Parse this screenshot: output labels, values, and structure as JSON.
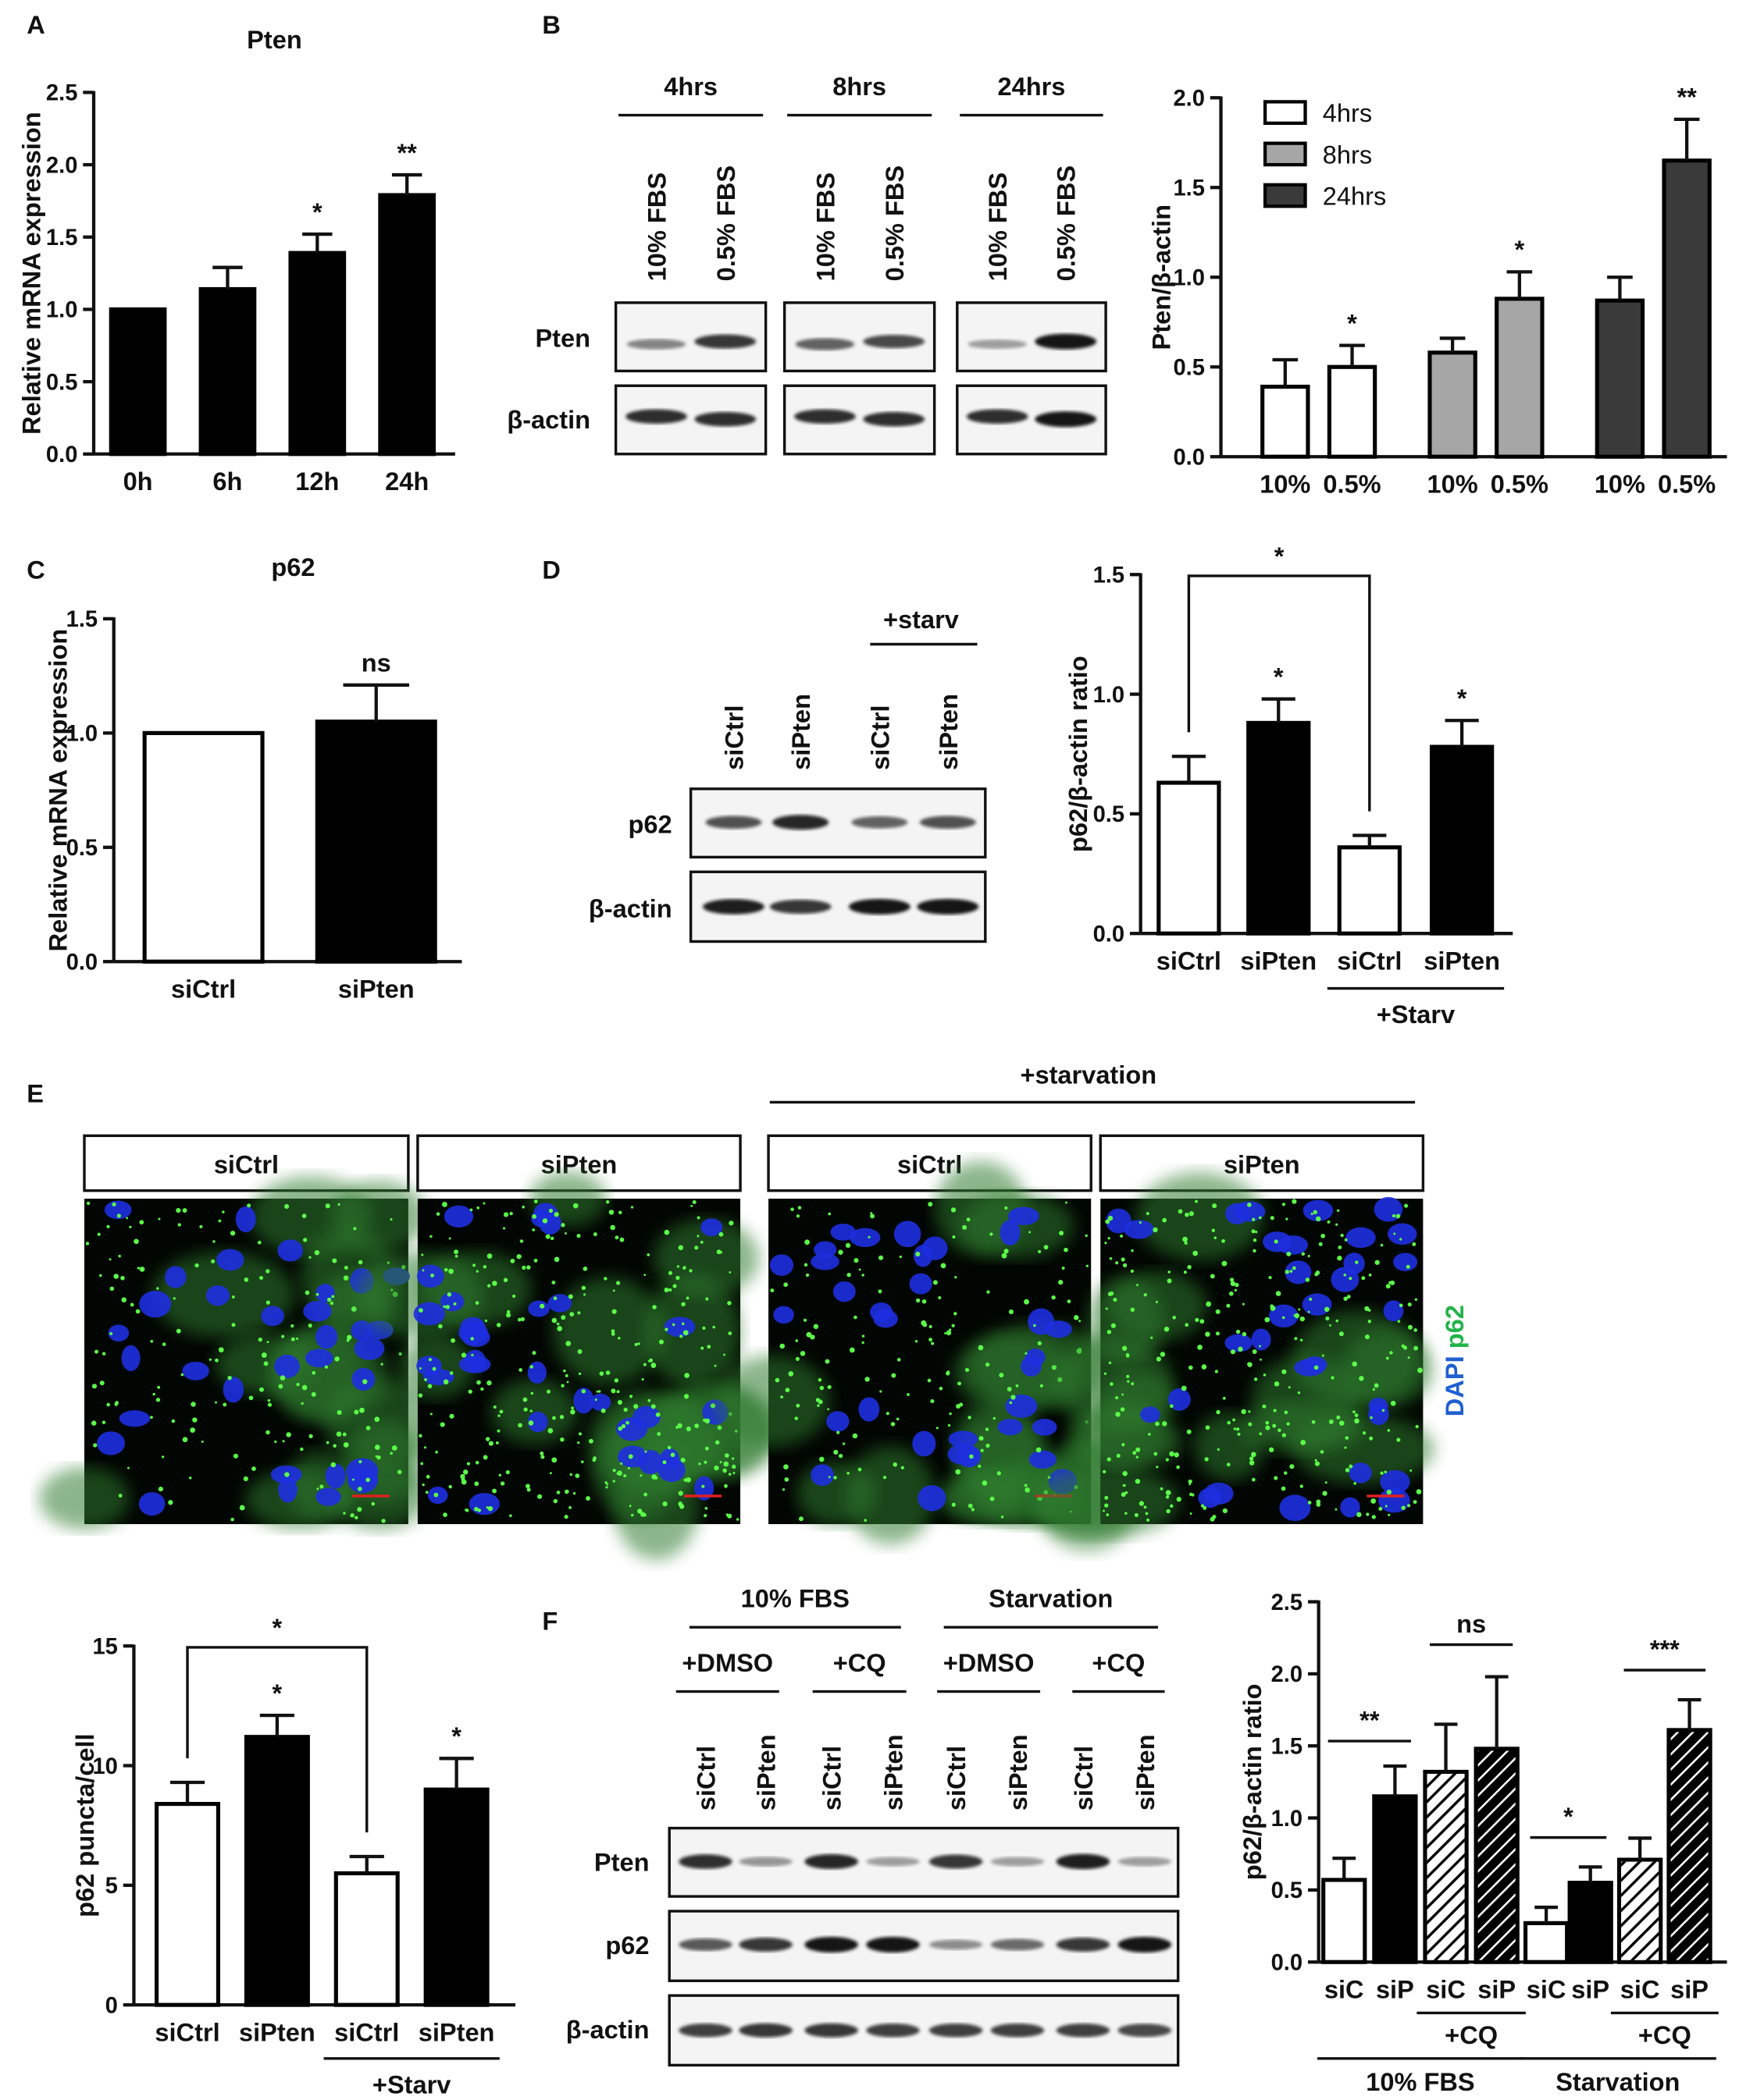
{
  "panel_letters": [
    "A",
    "B",
    "C",
    "D",
    "E",
    "F"
  ],
  "chart_data": [
    {
      "type": "bar",
      "title": "Pten",
      "ylabel": "Relative mRNA expression",
      "categories": [
        "0h",
        "6h",
        "12h",
        "24h"
      ],
      "values": [
        1.0,
        1.14,
        1.39,
        1.79
      ],
      "errors": [
        0,
        0.15,
        0.13,
        0.14
      ],
      "annotations": [
        null,
        null,
        "*",
        "**"
      ],
      "colors": [
        "#000000",
        "#000000",
        "#000000",
        "#000000"
      ],
      "ylim": [
        0,
        2.5
      ],
      "yticks": [
        {
          "value": 0,
          "label": "0.0"
        },
        0.5,
        {
          "value": 1,
          "label": "1.0"
        },
        1.5,
        {
          "value": 2,
          "label": "2.0"
        },
        2.5
      ]
    },
    {
      "type": "grouped-bar",
      "ylabel": "Pten/β-actin",
      "categories": [
        "10%",
        "0.5%"
      ],
      "series": [
        {
          "name": "4hrs",
          "color": "#ffffff",
          "values": [
            0.39,
            0.5
          ],
          "errors": [
            0.15,
            0.12
          ],
          "annotations": [
            null,
            "*"
          ]
        },
        {
          "name": "8hrs",
          "color": "#a6a6a6",
          "values": [
            0.58,
            0.88
          ],
          "errors": [
            0.08,
            0.15
          ],
          "annotations": [
            null,
            "*"
          ]
        },
        {
          "name": "24hrs",
          "color": "#3a3a3a",
          "values": [
            0.87,
            1.65
          ],
          "errors": [
            0.13,
            0.23
          ],
          "annotations": [
            null,
            "**"
          ]
        }
      ],
      "legend": "upper-left",
      "ylim": [
        0,
        2
      ],
      "yticks": [
        {
          "value": 0,
          "label": "0.0"
        },
        0.5,
        {
          "value": 1,
          "label": "1.0"
        },
        1.5,
        {
          "value": 2,
          "label": "2.0"
        }
      ]
    },
    {
      "type": "bar",
      "title": "p62",
      "ylabel": "Relative mRNA expression",
      "categories": [
        "siCtrl",
        "siPten"
      ],
      "values": [
        1.0,
        1.05
      ],
      "errors": [
        0,
        0.16
      ],
      "annotations": [
        null,
        "ns"
      ],
      "colors": [
        "#ffffff",
        "#000000"
      ],
      "ylim": [
        0,
        1.5
      ],
      "yticks": [
        {
          "value": 0,
          "label": "0.0"
        },
        0.5,
        {
          "value": 1,
          "label": "1.0"
        },
        1.5
      ]
    },
    {
      "type": "bar",
      "ylabel": "p62/β-actin ratio",
      "categories": [
        "siCtrl",
        "siPten",
        "siCtrl",
        "siPten"
      ],
      "values": [
        0.63,
        0.88,
        0.36,
        0.78
      ],
      "errors": [
        0.11,
        0.1,
        0.05,
        0.11
      ],
      "annotations": [
        null,
        "*",
        null,
        "*"
      ],
      "colors": [
        "#ffffff",
        "#000000",
        "#ffffff",
        "#000000"
      ],
      "brackets": [
        "*"
      ],
      "group_labels": [
        "+Starv"
      ],
      "ylim": [
        0,
        1.5
      ],
      "yticks": [
        {
          "value": 0,
          "label": "0.0"
        },
        0.5,
        {
          "value": 1,
          "label": "1.0"
        },
        1.5
      ]
    },
    {
      "type": "bar",
      "ylabel": "p62 puncta/cell",
      "categories": [
        "siCtrl",
        "siPten",
        "siCtrl",
        "siPten"
      ],
      "values": [
        8.4,
        11.2,
        5.5,
        9.0
      ],
      "errors": [
        0.9,
        0.9,
        0.7,
        1.3
      ],
      "annotations": [
        null,
        "*",
        null,
        "*"
      ],
      "colors": [
        "#ffffff",
        "#000000",
        "#ffffff",
        "#000000"
      ],
      "brackets": [
        "*"
      ],
      "group_labels": [
        "+Starv"
      ],
      "ylim": [
        0,
        15
      ],
      "yticks": [
        0,
        5,
        10,
        15
      ]
    },
    {
      "type": "bar",
      "ylabel": "p62/β-actin ratio",
      "categories": [
        "siC",
        "siP",
        "siC",
        "siP",
        "siC",
        "siP",
        "siC",
        "siP"
      ],
      "values": [
        0.57,
        1.15,
        1.32,
        1.48,
        0.27,
        0.55,
        0.71,
        1.61
      ],
      "errors": [
        0.15,
        0.21,
        0.33,
        0.5,
        0.11,
        0.11,
        0.15,
        0.21
      ],
      "colors": [
        "#ffffff",
        "#000000",
        "#ffffff",
        "#000000",
        "#ffffff",
        "#000000",
        "#ffffff",
        "#000000"
      ],
      "patterns": [
        null,
        null,
        "hatch",
        "hatch",
        null,
        null,
        "hatch",
        "hatch"
      ],
      "brackets": [
        "**",
        "ns",
        "*",
        "***"
      ],
      "group_labels": [
        "+CQ",
        "+CQ"
      ],
      "condition_labels": [
        "10% FBS",
        "Starvation"
      ],
      "ylim": [
        0,
        2.5
      ],
      "yticks": [
        {
          "value": 0,
          "label": "0.0"
        },
        0.5,
        {
          "value": 1,
          "label": "1.0"
        },
        1.5,
        {
          "value": 2,
          "label": "2.0"
        },
        2.5
      ]
    }
  ],
  "blot_b": {
    "times": [
      "4hrs",
      "8hrs",
      "24hrs"
    ],
    "lanes": [
      "10% FBS",
      "0.5% FBS"
    ],
    "rows": [
      "Pten",
      "β-actin"
    ]
  },
  "blot_d": {
    "treatment": "+starv",
    "lanes": [
      "siCtrl",
      "siPten",
      "siCtrl",
      "siPten"
    ],
    "rows": [
      "p62",
      "β-actin"
    ]
  },
  "images_e": {
    "treatment": "+starvation",
    "headers": [
      "siCtrl",
      "siPten",
      "siCtrl",
      "siPten"
    ],
    "stain_labels": [
      "DAPI",
      "p62"
    ]
  },
  "blot_f": {
    "conditions": [
      "10% FBS",
      "Starvation"
    ],
    "treatments": [
      "+DMSO",
      "+CQ",
      "+DMSO",
      "+CQ"
    ],
    "lanes": [
      "siCtrl",
      "siPten",
      "siCtrl",
      "siPten",
      "siCtrl",
      "siPten",
      "siCtrl",
      "siPten"
    ],
    "rows": [
      "Pten",
      "p62",
      "β-actin"
    ]
  }
}
